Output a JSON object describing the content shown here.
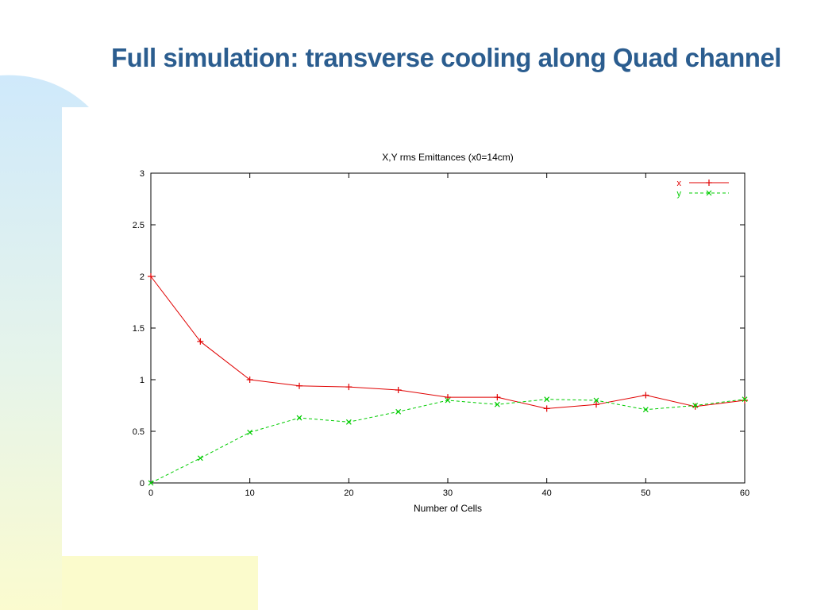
{
  "slide": {
    "title": "Full simulation:  transverse cooling along Quad channel"
  },
  "colors": {
    "title": "#2b5d8f",
    "series_x": "#e00000",
    "series_y": "#00cc00"
  },
  "chart_data": {
    "type": "line",
    "title": "X,Y rms Emittances (x0=14cm)",
    "xlabel": "Number of Cells",
    "ylabel": "",
    "xlim": [
      0,
      60
    ],
    "ylim": [
      0,
      3
    ],
    "xticks": [
      0,
      10,
      20,
      30,
      40,
      50,
      60
    ],
    "xtick_labels": [
      "0",
      "10",
      "20",
      "30",
      "40",
      "50",
      "60"
    ],
    "yticks": [
      0,
      0.5,
      1,
      1.5,
      2,
      2.5,
      3
    ],
    "ytick_labels": [
      "0",
      "0.5",
      "1",
      "1.5",
      "2",
      "2.5",
      "3"
    ],
    "grid": false,
    "legend": "top-right",
    "x": [
      0,
      5,
      10,
      15,
      20,
      25,
      30,
      35,
      40,
      45,
      50,
      55,
      60
    ],
    "series": [
      {
        "name": "x",
        "marker": "+",
        "dash": "solid",
        "values": [
          2.0,
          1.37,
          1.0,
          0.94,
          0.93,
          0.9,
          0.83,
          0.83,
          0.72,
          0.76,
          0.85,
          0.74,
          0.8
        ]
      },
      {
        "name": "y",
        "marker": "x",
        "dash": "dashed",
        "values": [
          0.0,
          0.24,
          0.49,
          0.63,
          0.59,
          0.69,
          0.8,
          0.76,
          0.81,
          0.8,
          0.71,
          0.75,
          0.81
        ]
      }
    ]
  }
}
